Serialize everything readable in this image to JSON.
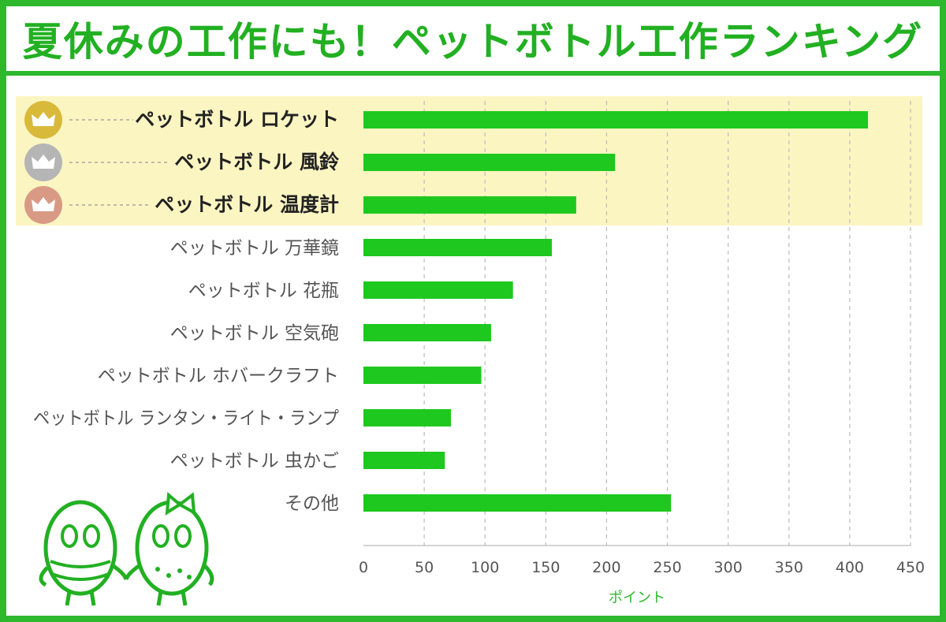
{
  "title": "夏休みの工作にも！ペットボトル工作ランキング",
  "colors": {
    "frame": "#2db82d",
    "bar": "#1ec81e",
    "highlight": "#fbf5c2",
    "gold": "#d9b93a",
    "silver": "#b5b5b5",
    "bronze": "#d99a85",
    "grid": "#bbbbbb",
    "xlabel": "#2db82d"
  },
  "chart_data": {
    "type": "bar",
    "orientation": "horizontal",
    "title": "夏休みの工作にも！ペットボトル工作ランキング",
    "xlabel": "ポイント",
    "ylabel": "",
    "xlim": [
      0,
      450
    ],
    "xticks": [
      0,
      50,
      100,
      150,
      200,
      250,
      300,
      350,
      400,
      450
    ],
    "grid": "vertical dashed",
    "categories": [
      "ペットボトル ロケット",
      "ペットボトル 風鈴",
      "ペットボトル 温度計",
      "ペットボトル 万華鏡",
      "ペットボトル 花瓶",
      "ペットボトル 空気砲",
      "ペットボトル ホバークラフト",
      "ペットボトル ランタン・ライト・ランプ",
      "ペットボトル 虫かご",
      "その他"
    ],
    "values": [
      415,
      207,
      175,
      155,
      123,
      105,
      97,
      72,
      67,
      253
    ],
    "top3_highlight": true
  }
}
